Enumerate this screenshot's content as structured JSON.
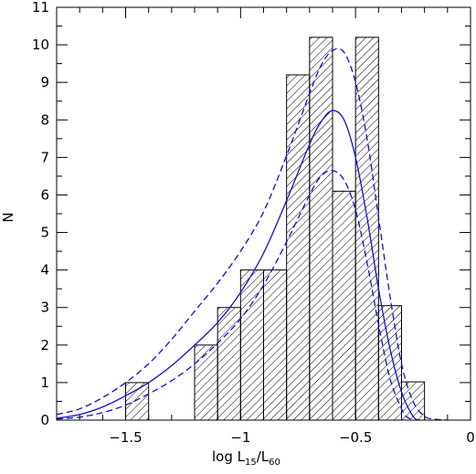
{
  "chart_data": {
    "type": "bar",
    "xlabel_base": "log L",
    "xlabel_sub1": "15",
    "xlabel_sep": "/L",
    "xlabel_sub2": "60",
    "ylabel": "N",
    "xlim": [
      -1.8,
      0
    ],
    "ylim": [
      0,
      11
    ],
    "x_ticks": [
      -1.5,
      -1,
      -0.5,
      0
    ],
    "x_tick_labels": [
      "−1.5",
      "−1",
      "−0.5",
      "0"
    ],
    "y_ticks": [
      0,
      1,
      2,
      3,
      4,
      5,
      6,
      7,
      8,
      9,
      10,
      11
    ],
    "y_tick_labels": [
      "0",
      "1",
      "2",
      "3",
      "4",
      "5",
      "6",
      "7",
      "8",
      "9",
      "10",
      "11"
    ],
    "histogram": {
      "bin_edges": [
        -1.5,
        -1.4,
        -1.3,
        -1.2,
        -1.1,
        -1.0,
        -0.9,
        -0.8,
        -0.7,
        -0.6,
        -0.5,
        -0.4,
        -0.3,
        -0.2
      ],
      "values": [
        1,
        0,
        0,
        2,
        3,
        4,
        4,
        9.2,
        10.2,
        6.1,
        10.2,
        3.05,
        1.02
      ],
      "fill": "hatched",
      "color": "#000000"
    },
    "curves": [
      {
        "style": "solid",
        "color": "#1010d0",
        "points": [
          [
            -1.8,
            0.05
          ],
          [
            -1.7,
            0.15
          ],
          [
            -1.6,
            0.35
          ],
          [
            -1.5,
            0.65
          ],
          [
            -1.4,
            1.0
          ],
          [
            -1.3,
            1.45
          ],
          [
            -1.2,
            2.0
          ],
          [
            -1.1,
            2.6
          ],
          [
            -1.0,
            3.4
          ],
          [
            -0.9,
            4.45
          ],
          [
            -0.8,
            5.85
          ],
          [
            -0.7,
            7.35
          ],
          [
            -0.65,
            7.95
          ],
          [
            -0.6,
            8.25
          ],
          [
            -0.55,
            8.0
          ],
          [
            -0.5,
            7.0
          ],
          [
            -0.45,
            5.4
          ],
          [
            -0.4,
            3.5
          ],
          [
            -0.35,
            1.9
          ],
          [
            -0.3,
            0.75
          ],
          [
            -0.25,
            0.1
          ],
          [
            -0.22,
            0
          ]
        ]
      },
      {
        "style": "dashed",
        "color": "#1010d0",
        "points": [
          [
            -1.8,
            0.15
          ],
          [
            -1.7,
            0.3
          ],
          [
            -1.6,
            0.6
          ],
          [
            -1.5,
            1.0
          ],
          [
            -1.4,
            1.5
          ],
          [
            -1.3,
            2.15
          ],
          [
            -1.2,
            2.9
          ],
          [
            -1.1,
            3.65
          ],
          [
            -1.0,
            4.5
          ],
          [
            -0.9,
            5.55
          ],
          [
            -0.8,
            7.05
          ],
          [
            -0.7,
            8.7
          ],
          [
            -0.65,
            9.45
          ],
          [
            -0.6,
            9.85
          ],
          [
            -0.55,
            9.8
          ],
          [
            -0.5,
            9.0
          ],
          [
            -0.45,
            7.5
          ],
          [
            -0.4,
            5.4
          ],
          [
            -0.35,
            3.3
          ],
          [
            -0.3,
            1.5
          ],
          [
            -0.25,
            0.5
          ],
          [
            -0.2,
            0.1
          ],
          [
            -0.15,
            0.02
          ],
          [
            -0.1,
            0
          ]
        ]
      },
      {
        "style": "dashed",
        "color": "#1010d0",
        "points": [
          [
            -1.8,
            0.03
          ],
          [
            -1.7,
            0.08
          ],
          [
            -1.6,
            0.2
          ],
          [
            -1.5,
            0.4
          ],
          [
            -1.4,
            0.7
          ],
          [
            -1.3,
            1.05
          ],
          [
            -1.2,
            1.5
          ],
          [
            -1.1,
            2.05
          ],
          [
            -1.0,
            2.7
          ],
          [
            -0.9,
            3.6
          ],
          [
            -0.8,
            4.75
          ],
          [
            -0.7,
            6.0
          ],
          [
            -0.65,
            6.5
          ],
          [
            -0.6,
            6.65
          ],
          [
            -0.55,
            6.4
          ],
          [
            -0.5,
            5.6
          ],
          [
            -0.45,
            4.2
          ],
          [
            -0.4,
            2.55
          ],
          [
            -0.35,
            1.1
          ],
          [
            -0.3,
            0.3
          ],
          [
            -0.28,
            0.1
          ],
          [
            -0.25,
            0
          ]
        ]
      }
    ]
  }
}
